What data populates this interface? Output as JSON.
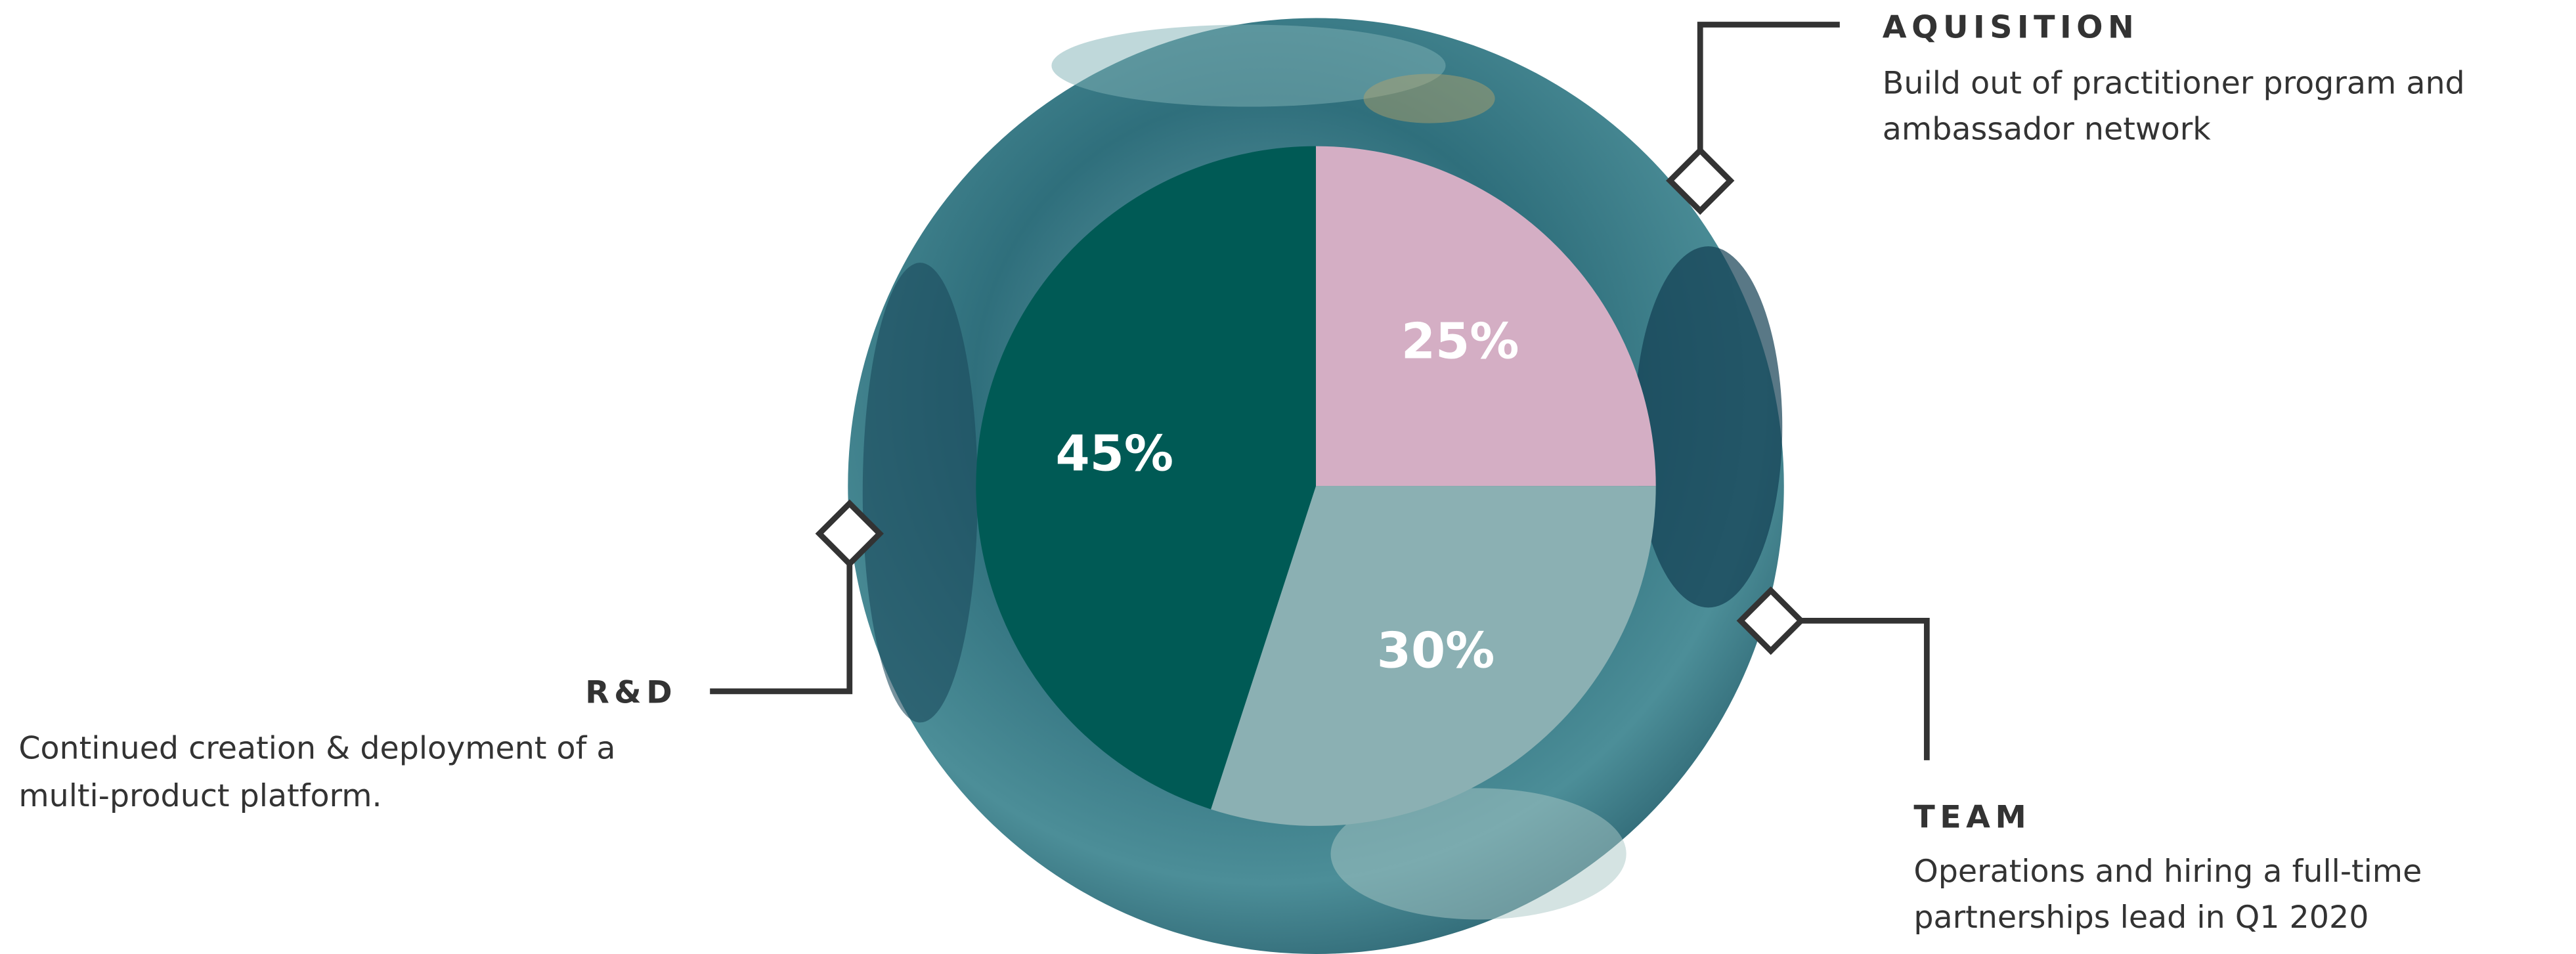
{
  "chart_data": {
    "type": "pie",
    "categories": [
      "AQUISITION",
      "TEAM",
      "R&D"
    ],
    "values": [
      25,
      30,
      45
    ],
    "value_labels": [
      "25%",
      "30%",
      "45%"
    ],
    "colors": [
      "#d4aec4",
      "#8bb0b3",
      "#005a55"
    ],
    "descriptions": [
      [
        "Build out of practitioner program and",
        "ambassador network"
      ],
      [
        "Operations and hiring a full-time",
        "partnerships lead in Q1 2020"
      ],
      [
        "Continued creation & deployment of a",
        "multi-product platform."
      ]
    ]
  }
}
